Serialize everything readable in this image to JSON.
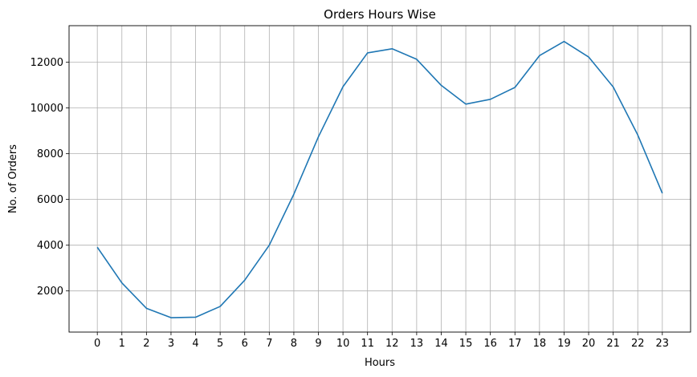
{
  "chart_data": {
    "type": "line",
    "title": "Orders Hours Wise",
    "xlabel": "Hours",
    "ylabel": "No. of Orders",
    "x": [
      0,
      1,
      2,
      3,
      4,
      5,
      6,
      7,
      8,
      9,
      10,
      11,
      12,
      13,
      14,
      15,
      16,
      17,
      18,
      19,
      20,
      21,
      22,
      23
    ],
    "x_ticks": [
      "0",
      "1",
      "2",
      "3",
      "4",
      "5",
      "6",
      "7",
      "8",
      "9",
      "10",
      "11",
      "12",
      "13",
      "14",
      "15",
      "16",
      "17",
      "18",
      "19",
      "20",
      "21",
      "22",
      "23"
    ],
    "y_ticks": [
      2000,
      4000,
      6000,
      8000,
      10000,
      12000
    ],
    "y_tick_labels": [
      "2000",
      "4000",
      "6000",
      "8000",
      "10000",
      "12000"
    ],
    "xlim": [
      -1.15,
      24.15
    ],
    "ylim": [
      200,
      13600
    ],
    "grid": true,
    "series": [
      {
        "values": [
          3910,
          2350,
          1240,
          830,
          850,
          1320,
          2470,
          4000,
          6230,
          8740,
          10930,
          12410,
          12590,
          12130,
          10990,
          10170,
          10380,
          10900,
          12290,
          12910,
          12230,
          10920,
          8820,
          6270
        ],
        "color": "#1f77b4"
      }
    ]
  }
}
